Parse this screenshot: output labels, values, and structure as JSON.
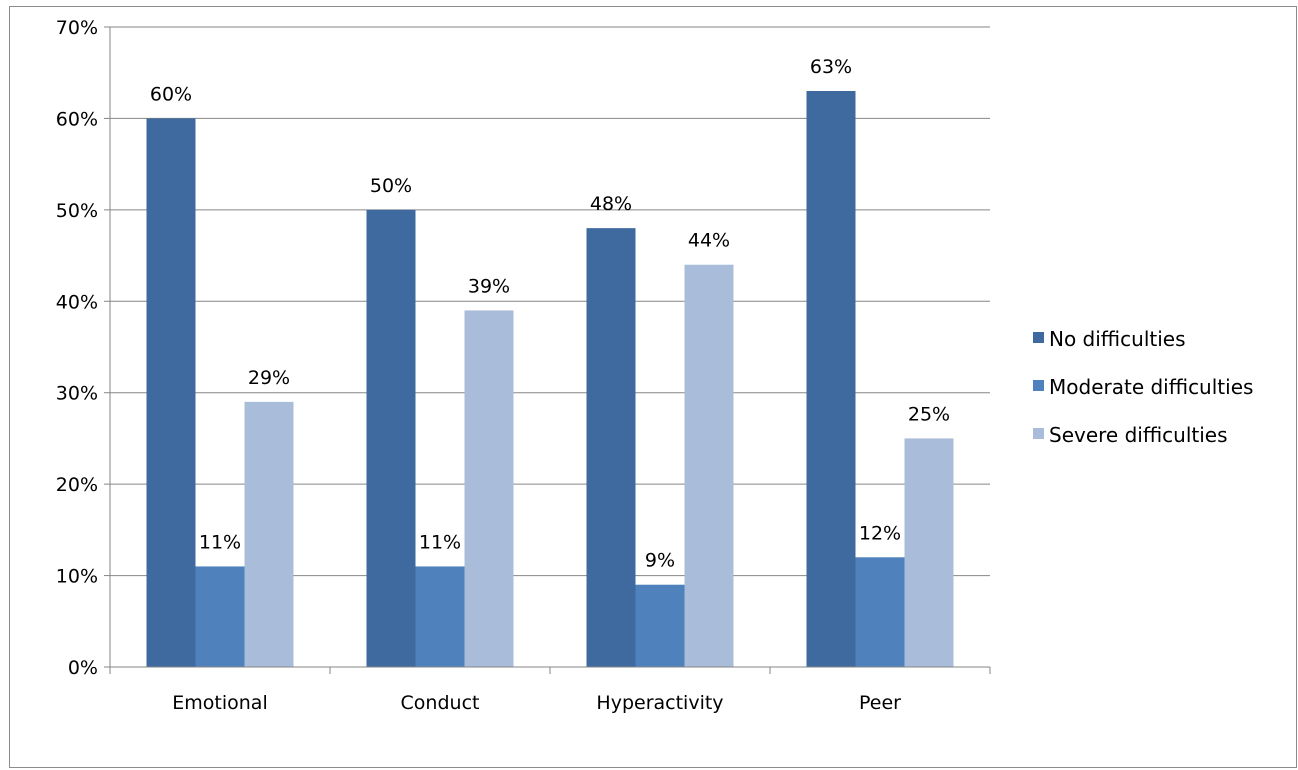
{
  "chart_data": {
    "type": "bar",
    "categories": [
      "Emotional",
      "Conduct",
      "Hyperactivity",
      "Peer"
    ],
    "series": [
      {
        "name": "No difficulties",
        "values": [
          60,
          50,
          48,
          63
        ],
        "labels": [
          "60%",
          "50%",
          "48%",
          "63%"
        ],
        "color": "#3F6A9F"
      },
      {
        "name": "Moderate difficulties",
        "values": [
          11,
          11,
          9,
          12
        ],
        "labels": [
          "11%",
          "11%",
          "9%",
          "12%"
        ],
        "color": "#4F81BD"
      },
      {
        "name": "Severe difficulties",
        "values": [
          29,
          39,
          44,
          25
        ],
        "labels": [
          "29%",
          "39%",
          "44%",
          "25%"
        ],
        "color": "#A9BCD9"
      }
    ],
    "ylim": [
      0,
      70
    ],
    "yticks": [
      0,
      10,
      20,
      30,
      40,
      50,
      60,
      70
    ],
    "ytick_labels": [
      "0%",
      "10%",
      "20%",
      "30%",
      "40%",
      "50%",
      "60%",
      "70%"
    ],
    "grid": true,
    "legend_position": "right",
    "title": "",
    "xlabel": "",
    "ylabel": ""
  }
}
